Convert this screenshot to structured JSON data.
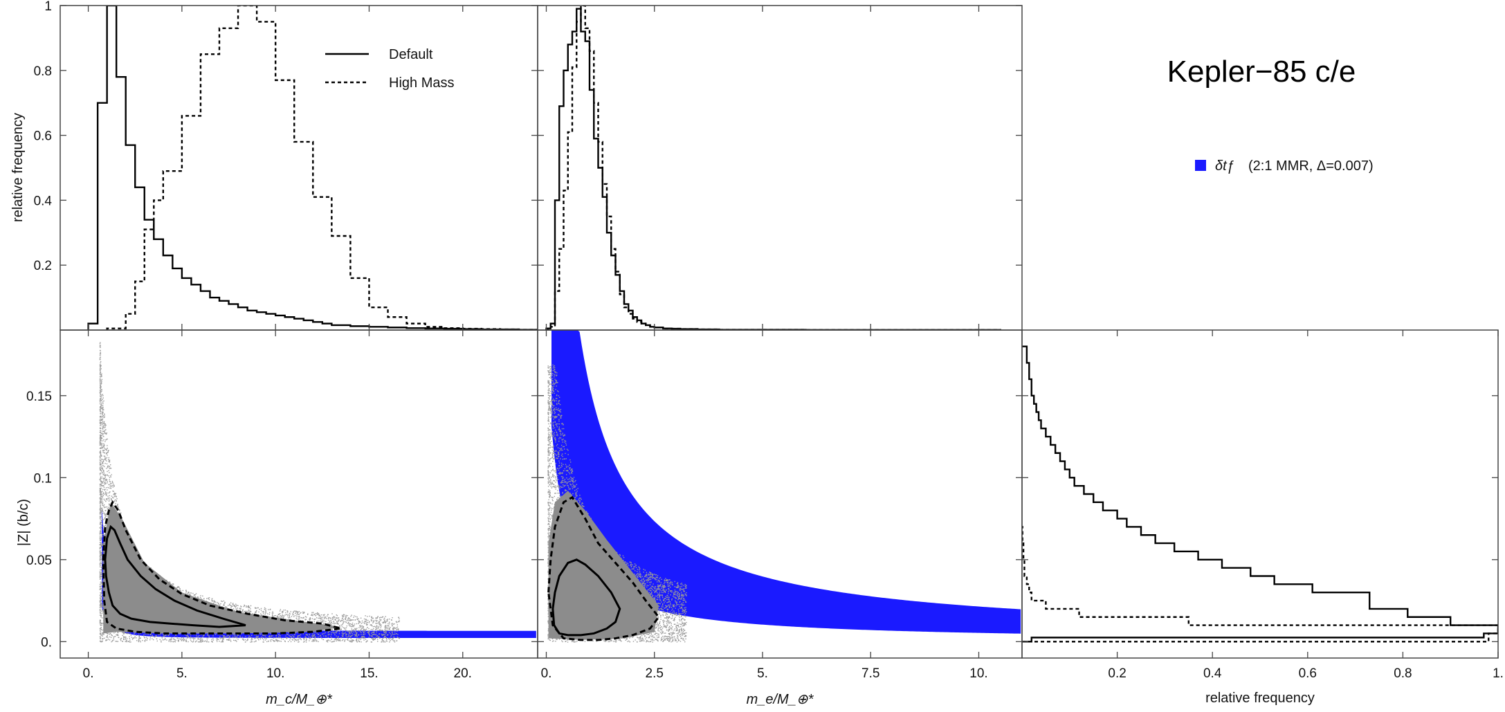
{
  "title": "Kepler−85 c/e",
  "legend": {
    "default_label": "Default",
    "highmass_label": "High Mass",
    "resonance_symbol": "δtƒ",
    "resonance_label": "(2:1 MMR, Δ=0.007)"
  },
  "colors": {
    "blue": "#1a1aff",
    "gray": "#8c8c8c",
    "black": "#000000"
  },
  "chart_data": [
    {
      "type": "histogram",
      "panel": "top-left",
      "ylabel": "relative frequency",
      "xlim": [
        -1.5,
        24
      ],
      "ylim": [
        0,
        1
      ],
      "y_ticks": [
        "0.2",
        "0.4",
        "0.6",
        "0.8",
        "1"
      ],
      "series": [
        {
          "name": "Default",
          "style": "solid",
          "edges": [
            0,
            0.5,
            1,
            1.5,
            2,
            2.5,
            3,
            3.5,
            4,
            4.5,
            5,
            5.5,
            6,
            6.5,
            7,
            7.5,
            8,
            8.5,
            9,
            9.5,
            10,
            10.5,
            11,
            11.5,
            12,
            12.5,
            13,
            14,
            15,
            16,
            17,
            18,
            19,
            20,
            21,
            22,
            23,
            24
          ],
          "values": [
            0.02,
            0.7,
            1.0,
            0.78,
            0.57,
            0.44,
            0.34,
            0.28,
            0.23,
            0.19,
            0.16,
            0.14,
            0.12,
            0.1,
            0.09,
            0.08,
            0.07,
            0.06,
            0.055,
            0.05,
            0.045,
            0.04,
            0.035,
            0.03,
            0.025,
            0.02,
            0.015,
            0.012,
            0.01,
            0.008,
            0.006,
            0.005,
            0.004,
            0.003,
            0.002,
            0.002,
            0.001
          ]
        },
        {
          "name": "High Mass",
          "style": "dashed",
          "edges": [
            1,
            2,
            2.5,
            3,
            3.5,
            4,
            5,
            6,
            7,
            8,
            9,
            10,
            11,
            12,
            13,
            14,
            15,
            16,
            17,
            18,
            19,
            20,
            21,
            22,
            23,
            24
          ],
          "values": [
            0.005,
            0.05,
            0.15,
            0.31,
            0.4,
            0.49,
            0.66,
            0.85,
            0.93,
            1.0,
            0.95,
            0.77,
            0.58,
            0.41,
            0.29,
            0.16,
            0.07,
            0.04,
            0.02,
            0.01,
            0.006,
            0.004,
            0.003,
            0.002,
            0.001
          ]
        }
      ]
    },
    {
      "type": "histogram",
      "panel": "top-middle",
      "xlim": [
        -0.2,
        11
      ],
      "ylim": [
        0,
        1
      ],
      "series": [
        {
          "name": "Default",
          "style": "solid",
          "edges": [
            0,
            0.1,
            0.2,
            0.3,
            0.4,
            0.5,
            0.6,
            0.7,
            0.8,
            0.9,
            1.0,
            1.1,
            1.2,
            1.3,
            1.4,
            1.5,
            1.6,
            1.7,
            1.8,
            1.9,
            2.0,
            2.1,
            2.2,
            2.3,
            2.4,
            2.5,
            2.7,
            2.9,
            3.1,
            3.5,
            4.0,
            6.0,
            10.5
          ],
          "values": [
            0.005,
            0.02,
            0.4,
            0.69,
            0.8,
            0.88,
            0.92,
            0.99,
            0.92,
            0.89,
            0.74,
            0.59,
            0.5,
            0.41,
            0.3,
            0.23,
            0.17,
            0.12,
            0.08,
            0.06,
            0.04,
            0.03,
            0.02,
            0.015,
            0.01,
            0.008,
            0.005,
            0.004,
            0.003,
            0.002,
            0.001,
            0.0005
          ]
        },
        {
          "name": "High Mass",
          "style": "dashed",
          "edges": [
            0,
            0.1,
            0.2,
            0.3,
            0.4,
            0.5,
            0.6,
            0.7,
            0.8,
            0.9,
            1.0,
            1.1,
            1.2,
            1.3,
            1.4,
            1.5,
            1.6,
            1.7,
            1.8,
            1.9,
            2.0,
            2.1,
            2.2,
            2.3,
            2.4,
            2.5,
            2.7,
            2.9,
            3.1,
            3.5,
            4.0,
            6.0,
            10.5
          ],
          "values": [
            0.002,
            0.01,
            0.12,
            0.25,
            0.43,
            0.61,
            0.81,
            0.95,
            1.0,
            0.93,
            0.86,
            0.7,
            0.58,
            0.45,
            0.35,
            0.25,
            0.18,
            0.11,
            0.07,
            0.05,
            0.035,
            0.025,
            0.02,
            0.015,
            0.01,
            0.008,
            0.005,
            0.004,
            0.003,
            0.002,
            0.001,
            0.0005
          ]
        }
      ]
    },
    {
      "type": "scatter",
      "panel": "bottom-left",
      "xlabel": "m_c/M_⊕*",
      "ylabel": "|Z| (b/c)",
      "xlim": [
        -1.5,
        24
      ],
      "ylim": [
        -0.01,
        0.19
      ],
      "x_ticks": [
        "0.",
        "5.",
        "10.",
        "15.",
        "20."
      ],
      "y_ticks": [
        "0.",
        "0.05",
        "0.1",
        "0.15"
      ],
      "region_blue": "|Z| ≈ 0.0045 / m_c (resonance band)",
      "contours": [
        {
          "style": "solid",
          "x": [
            0.9,
            1.0,
            1.2,
            1.4,
            1.7,
            2.1,
            2.8,
            3.6,
            4.6,
            5.8,
            7.2,
            8.4,
            7.0,
            5.6,
            4.4,
            3.3,
            2.3,
            1.7,
            1.3,
            1.1,
            0.95,
            0.9
          ],
          "y": [
            0.05,
            0.063,
            0.07,
            0.068,
            0.06,
            0.05,
            0.04,
            0.032,
            0.025,
            0.019,
            0.014,
            0.01,
            0.009,
            0.01,
            0.011,
            0.012,
            0.014,
            0.017,
            0.022,
            0.03,
            0.04,
            0.05
          ]
        },
        {
          "style": "dashed",
          "x": [
            0.8,
            0.9,
            1.1,
            1.3,
            1.6,
            2.0,
            2.8,
            3.8,
            5.0,
            6.5,
            8.5,
            10.5,
            12.5,
            13.5,
            12.0,
            10.0,
            8.0,
            6.0,
            4.0,
            2.5,
            1.5,
            1.0,
            0.85,
            0.8
          ],
          "y": [
            0.05,
            0.07,
            0.08,
            0.085,
            0.08,
            0.068,
            0.05,
            0.038,
            0.029,
            0.022,
            0.017,
            0.013,
            0.011,
            0.008,
            0.006,
            0.005,
            0.005,
            0.005,
            0.005,
            0.006,
            0.008,
            0.012,
            0.025,
            0.05
          ]
        }
      ]
    },
    {
      "type": "scatter",
      "panel": "bottom-middle",
      "xlabel": "m_e/M_⊕*",
      "xlim": [
        -0.2,
        11
      ],
      "ylim": [
        -0.01,
        0.19
      ],
      "x_ticks": [
        "0.",
        "2.5",
        "5.",
        "7.5",
        "10."
      ],
      "region_blue": "0.05/(m_e+0.3) < |Z| < 0.2/(m_e+0.3), clipped at 0.19",
      "contours": [
        {
          "style": "solid",
          "x": [
            0.15,
            0.2,
            0.3,
            0.5,
            0.7,
            0.9,
            1.2,
            1.5,
            1.7,
            1.6,
            1.4,
            1.1,
            0.8,
            0.5,
            0.3,
            0.18,
            0.15
          ],
          "y": [
            0.02,
            0.03,
            0.04,
            0.048,
            0.05,
            0.047,
            0.04,
            0.03,
            0.02,
            0.012,
            0.008,
            0.005,
            0.004,
            0.004,
            0.005,
            0.01,
            0.02
          ]
        },
        {
          "style": "dashed",
          "x": [
            0.05,
            0.1,
            0.2,
            0.4,
            0.6,
            0.9,
            1.2,
            1.6,
            2.0,
            2.3,
            2.6,
            2.4,
            2.0,
            1.6,
            1.2,
            0.8,
            0.4,
            0.15,
            0.05
          ],
          "y": [
            0.03,
            0.05,
            0.07,
            0.085,
            0.088,
            0.075,
            0.06,
            0.048,
            0.036,
            0.025,
            0.015,
            0.008,
            0.004,
            0.002,
            0.001,
            0.001,
            0.002,
            0.01,
            0.03
          ]
        }
      ]
    },
    {
      "type": "histogram",
      "panel": "bottom-right",
      "orientation": "horizontal",
      "xlabel": "relative frequency",
      "xlim": [
        0,
        1
      ],
      "ylim": [
        -0.01,
        0.19
      ],
      "x_ticks": [
        "0.2",
        "0.4",
        "0.6",
        "0.8",
        "1."
      ],
      "series": [
        {
          "name": "Default",
          "style": "solid",
          "edges": [
            0,
            0.0025,
            0.005,
            0.01,
            0.015,
            0.02,
            0.03,
            0.035,
            0.04,
            0.045,
            0.05,
            0.055,
            0.06,
            0.065,
            0.07,
            0.075,
            0.08,
            0.085,
            0.09,
            0.095,
            0.1,
            0.105,
            0.11,
            0.115,
            0.12,
            0.125,
            0.13,
            0.135,
            0.14,
            0.145,
            0.15,
            0.16,
            0.17,
            0.18
          ],
          "values": [
            0.02,
            0.97,
            1.0,
            0.9,
            0.81,
            0.73,
            0.61,
            0.53,
            0.48,
            0.42,
            0.37,
            0.32,
            0.28,
            0.25,
            0.22,
            0.2,
            0.17,
            0.15,
            0.13,
            0.11,
            0.1,
            0.09,
            0.08,
            0.07,
            0.06,
            0.05,
            0.04,
            0.035,
            0.03,
            0.025,
            0.02,
            0.015,
            0.01
          ]
        },
        {
          "name": "High Mass",
          "style": "dashed",
          "edges": [
            0,
            0.005,
            0.01,
            0.015,
            0.02,
            0.025,
            0.03,
            0.035,
            0.04,
            0.05,
            0.06,
            0.07
          ],
          "values": [
            0.98,
            1.0,
            0.35,
            0.12,
            0.05,
            0.02,
            0.015,
            0.01,
            0.005,
            0.003,
            0.001
          ]
        }
      ]
    }
  ]
}
